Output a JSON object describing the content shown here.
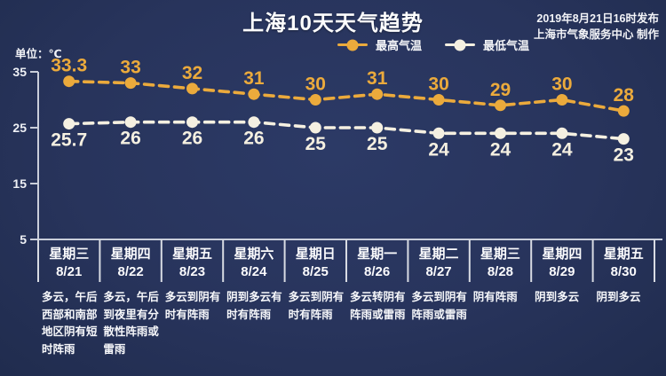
{
  "meta": {
    "title": "上海10天天气趋势",
    "issued": "2019年8月21日16时发布",
    "producer": "上海市气象服务中心 制作",
    "unit_label": "单位：℃"
  },
  "legend": {
    "max_label": "最高气温",
    "min_label": "最低气温"
  },
  "colors": {
    "background": "#28345c",
    "max_series": "#ebа93c",
    "max": "#ebaa3c",
    "min": "#f5f0e1",
    "axis": "#c9ceda",
    "divider": "#d8dbe3",
    "text": "#ffffff"
  },
  "chart_data": {
    "type": "line",
    "title": "上海10天天气趋势",
    "unit": "℃",
    "x_categories": [
      "8/21",
      "8/22",
      "8/23",
      "8/24",
      "8/25",
      "8/26",
      "8/27",
      "8/28",
      "8/29",
      "8/30"
    ],
    "weekdays": [
      "星期三",
      "星期四",
      "星期五",
      "星期六",
      "星期日",
      "星期一",
      "星期二",
      "星期三",
      "星期四",
      "星期五"
    ],
    "series": [
      {
        "name": "最高气温",
        "color": "#ebaa3c",
        "values": [
          33.3,
          33,
          32,
          31,
          30,
          31,
          30,
          29,
          30,
          28
        ]
      },
      {
        "name": "最低气温",
        "color": "#f5f0e1",
        "values": [
          25.7,
          26,
          26,
          26,
          25,
          25,
          24,
          24,
          24,
          23
        ]
      }
    ],
    "ylim": [
      5,
      35
    ],
    "yticks": [
      35,
      25,
      15,
      5
    ],
    "grid": false,
    "legend_position": "top",
    "line_style": "dashed"
  },
  "days": [
    {
      "weekday": "星期三",
      "date": "8/21",
      "weather": "多云，午后西部和南部地区阴有短时阵雨"
    },
    {
      "weekday": "星期四",
      "date": "8/22",
      "weather": "多云，午后到夜里有分散性阵雨或雷雨"
    },
    {
      "weekday": "星期五",
      "date": "8/23",
      "weather": "多云到阴有时有阵雨"
    },
    {
      "weekday": "星期六",
      "date": "8/24",
      "weather": "阴到多云有时有阵雨"
    },
    {
      "weekday": "星期日",
      "date": "8/25",
      "weather": "多云到阴有时有阵雨"
    },
    {
      "weekday": "星期一",
      "date": "8/26",
      "weather": "多云转阴有阵雨或雷雨"
    },
    {
      "weekday": "星期二",
      "date": "8/27",
      "weather": "多云到阴有阵雨或雷雨"
    },
    {
      "weekday": "星期三",
      "date": "8/28",
      "weather": "阴有阵雨"
    },
    {
      "weekday": "星期四",
      "date": "8/29",
      "weather": "阴到多云"
    },
    {
      "weekday": "星期五",
      "date": "8/30",
      "weather": "阴到多云"
    }
  ]
}
